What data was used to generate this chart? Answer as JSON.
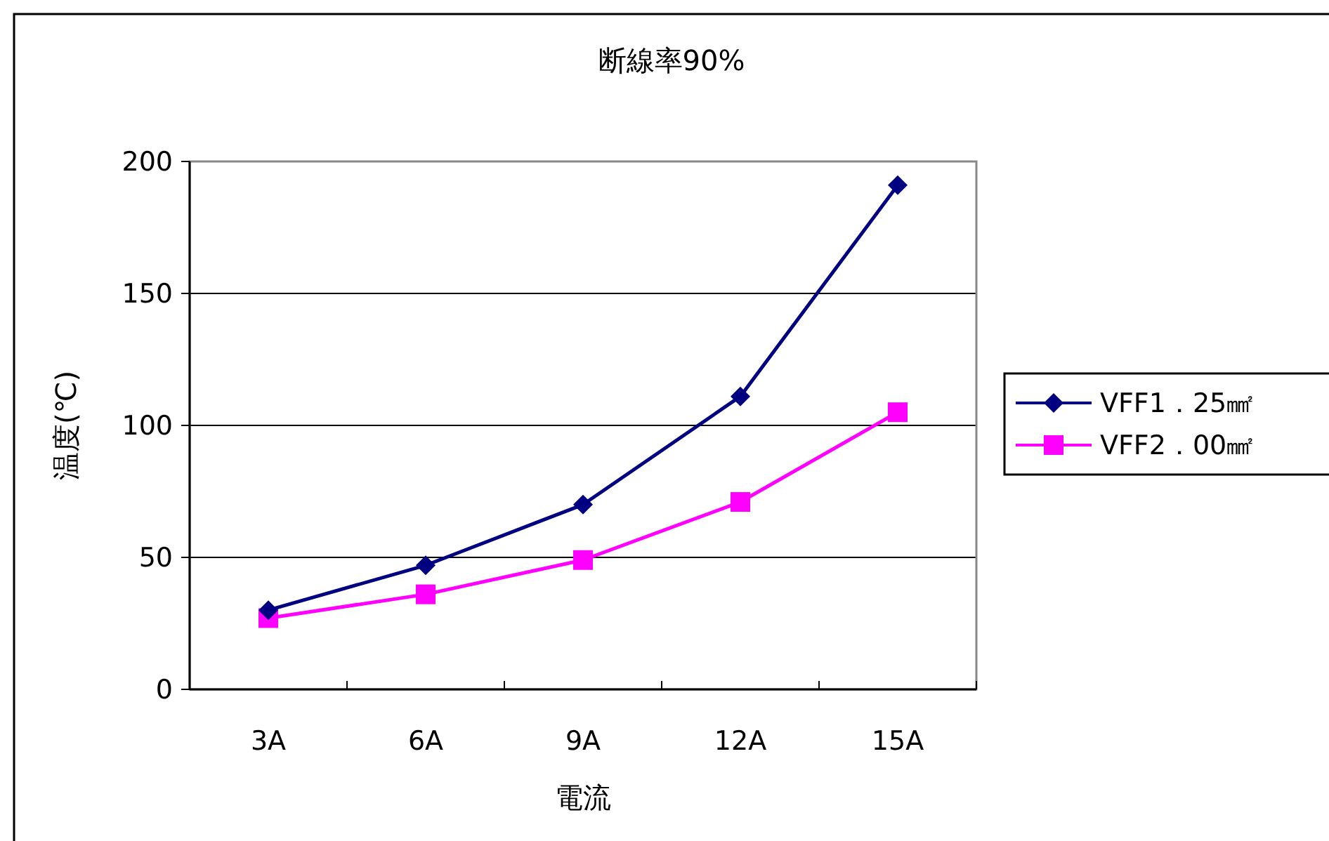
{
  "chart_data": {
    "type": "line",
    "title": "断線率90%",
    "xlabel": "電流",
    "ylabel": "温度(℃)",
    "categories": [
      "3A",
      "6A",
      "9A",
      "12A",
      "15A"
    ],
    "series": [
      {
        "name": "VFF1．25㎟",
        "color": "#000080",
        "values": [
          30,
          47,
          70,
          111,
          191
        ],
        "marker": "diamond"
      },
      {
        "name": "VFF2．00㎟",
        "color": "#ff00ff",
        "values": [
          27,
          36,
          49,
          71,
          105
        ],
        "marker": "square"
      }
    ],
    "ylim": [
      0,
      200
    ],
    "yticks": [
      0,
      50,
      100,
      150,
      200
    ],
    "grid": "y",
    "legend": "right"
  }
}
